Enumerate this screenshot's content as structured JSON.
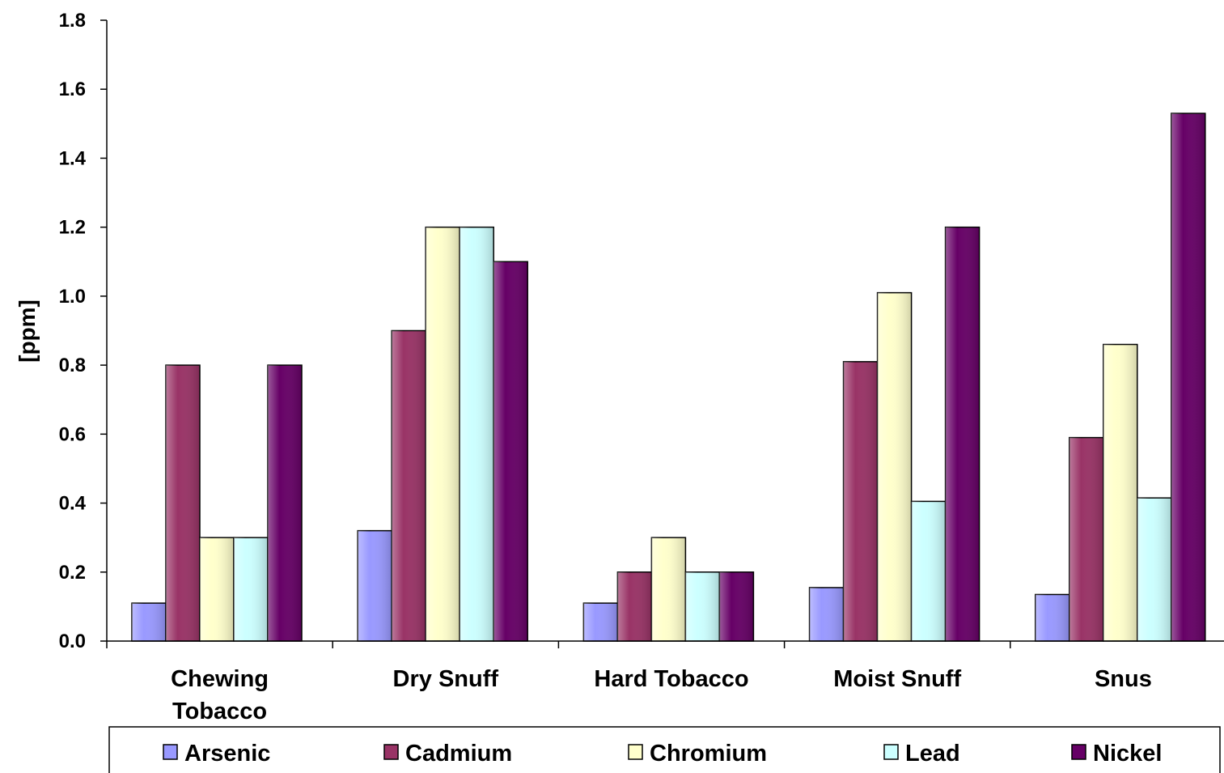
{
  "chart_data": {
    "type": "bar",
    "title": "",
    "xlabel": "",
    "ylabel": "[ppm]",
    "ylim": [
      0,
      1.8
    ],
    "yticks": [
      "0.0",
      "0.2",
      "0.4",
      "0.6",
      "0.8",
      "1.0",
      "1.2",
      "1.4",
      "1.6",
      "1.8"
    ],
    "categories": [
      [
        "Chewing",
        "Tobacco"
      ],
      [
        "Dry Snuff"
      ],
      [
        "Hard Tobacco"
      ],
      [
        "Moist Snuff"
      ],
      [
        "Snus"
      ]
    ],
    "series": [
      {
        "name": "Arsenic",
        "color": "#9999FF",
        "values": [
          0.11,
          0.32,
          0.11,
          0.155,
          0.135
        ]
      },
      {
        "name": "Cadmium",
        "color": "#993366",
        "values": [
          0.8,
          0.9,
          0.2,
          0.81,
          0.59
        ]
      },
      {
        "name": "Chromium",
        "color": "#FFFFCC",
        "values": [
          0.3,
          1.2,
          0.3,
          1.01,
          0.86
        ]
      },
      {
        "name": "Lead",
        "color": "#CCFFFF",
        "values": [
          0.3,
          1.2,
          0.2,
          0.405,
          0.415
        ]
      },
      {
        "name": "Nickel",
        "color": "#660066",
        "values": [
          0.8,
          1.1,
          0.2,
          1.2,
          1.53
        ]
      }
    ],
    "grid": false,
    "legend_position": "bottom"
  }
}
